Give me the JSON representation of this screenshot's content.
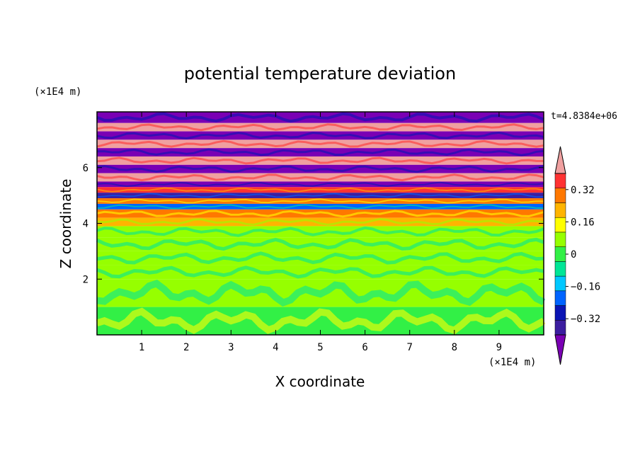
{
  "chart_data": {
    "type": "heatmap",
    "title": "potential temperature deviation",
    "xlabel": "X coordinate",
    "ylabel": "Z coordinate",
    "x_unit": "(×1E4 m)",
    "y_unit": "(×1E4 m)",
    "time_label": "t=4.8384e+06",
    "xlim": [
      0,
      10
    ],
    "ylim": [
      0,
      8
    ],
    "x_ticks": [
      "1",
      "2",
      "3",
      "4",
      "5",
      "6",
      "7",
      "8",
      "9"
    ],
    "y_ticks": [
      "2",
      "4",
      "6"
    ],
    "colorbar": {
      "levels": [
        -0.48,
        -0.4,
        -0.32,
        -0.24,
        -0.16,
        -0.08,
        0,
        0.08,
        0.16,
        0.24,
        0.32,
        0.4,
        0.48
      ],
      "tick_labels": [
        "0.32",
        "0.16",
        "0",
        "−0.16",
        "−0.32"
      ],
      "tick_values": [
        0.32,
        0.16,
        0,
        -0.16,
        -0.32
      ],
      "colors": [
        "#7a00b4",
        "#3c1ea0",
        "#0a14b4",
        "#0064ff",
        "#00c8ff",
        "#00e696",
        "#32f046",
        "#96ff00",
        "#ffff00",
        "#ffb400",
        "#ff7800",
        "#ff3232",
        "#f0a0a0"
      ],
      "extend": "both"
    },
    "bands": [
      {
        "z": [
          7.6,
          8.0
        ],
        "value": -0.5
      },
      {
        "z": [
          7.3,
          7.6
        ],
        "value": 0.5
      },
      {
        "z": [
          7.0,
          7.3
        ],
        "value": -0.5
      },
      {
        "z": [
          6.7,
          7.0
        ],
        "value": 0.5
      },
      {
        "z": [
          6.4,
          6.7
        ],
        "value": -0.5
      },
      {
        "z": [
          6.1,
          6.4
        ],
        "value": 0.5
      },
      {
        "z": [
          5.8,
          6.1
        ],
        "value": -0.5
      },
      {
        "z": [
          5.5,
          5.8
        ],
        "value": 0.5
      },
      {
        "z": [
          5.3,
          5.5
        ],
        "value": -0.5
      },
      {
        "z": [
          5.1,
          5.3
        ],
        "value": 0.35
      },
      {
        "z": [
          4.9,
          5.1
        ],
        "value": -0.45
      },
      {
        "z": [
          4.7,
          4.9
        ],
        "value": 0.3
      },
      {
        "z": [
          4.5,
          4.7
        ],
        "value": -0.3
      },
      {
        "z": [
          4.2,
          4.5
        ],
        "value": 0.25
      },
      {
        "z": [
          3.9,
          4.2
        ],
        "value": 0.17
      },
      {
        "z": [
          3.5,
          3.9
        ],
        "value": 0.05
      },
      {
        "z": [
          3.0,
          3.5
        ],
        "value": 0.02
      },
      {
        "z": [
          2.5,
          3.0
        ],
        "value": 0.03
      },
      {
        "z": [
          2.0,
          2.5
        ],
        "value": 0.01
      },
      {
        "z": [
          1.0,
          2.0
        ],
        "value": 0.02
      },
      {
        "z": [
          0.0,
          1.0
        ],
        "value": -0.05
      }
    ]
  }
}
